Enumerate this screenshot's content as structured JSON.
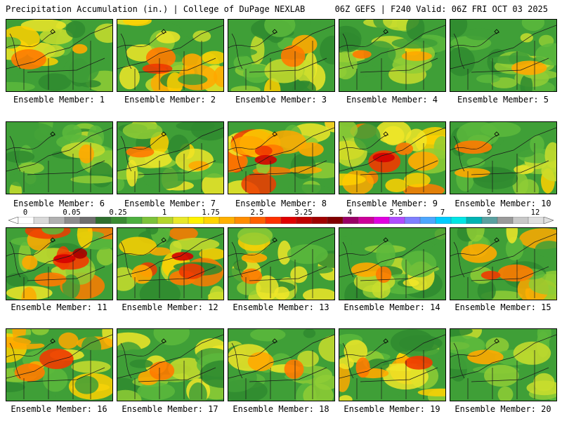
{
  "header": {
    "left_title": "Precipitation Accumulation (in.) | College of DuPage NEXLAB",
    "right_title": "06Z GEFS | F240 Valid: 06Z FRI OCT 03 2025"
  },
  "members": [
    {
      "label": "Ensemble Member: 1",
      "intensity": 2
    },
    {
      "label": "Ensemble Member: 2",
      "intensity": 3
    },
    {
      "label": "Ensemble Member: 3",
      "intensity": 2
    },
    {
      "label": "Ensemble Member: 4",
      "intensity": 2
    },
    {
      "label": "Ensemble Member: 5",
      "intensity": 1
    },
    {
      "label": "Ensemble Member: 6",
      "intensity": 1
    },
    {
      "label": "Ensemble Member: 7",
      "intensity": 2
    },
    {
      "label": "Ensemble Member: 8",
      "intensity": 4
    },
    {
      "label": "Ensemble Member: 9",
      "intensity": 4
    },
    {
      "label": "Ensemble Member: 10",
      "intensity": 2
    },
    {
      "label": "Ensemble Member: 11",
      "intensity": 5
    },
    {
      "label": "Ensemble Member: 12",
      "intensity": 4
    },
    {
      "label": "Ensemble Member: 13",
      "intensity": 2
    },
    {
      "label": "Ensemble Member: 14",
      "intensity": 2
    },
    {
      "label": "Ensemble Member: 15",
      "intensity": 3
    },
    {
      "label": "Ensemble Member: 16",
      "intensity": 3
    },
    {
      "label": "Ensemble Member: 17",
      "intensity": 2
    },
    {
      "label": "Ensemble Member: 18",
      "intensity": 2
    },
    {
      "label": "Ensemble Member: 19",
      "intensity": 3
    },
    {
      "label": "Ensemble Member: 20",
      "intensity": 1
    }
  ],
  "colorbar": {
    "labels": [
      "0",
      "0.05",
      "0.25",
      "1",
      "1.75",
      "2.5",
      "3.25",
      "4",
      "5.5",
      "7",
      "9",
      "12"
    ],
    "colors": [
      "#ffffff",
      "#d9d9d9",
      "#b0b0b0",
      "#8c8c8c",
      "#6e6e6e",
      "#2f6f2f",
      "#3a8a32",
      "#4caf3f",
      "#7cc23a",
      "#b5d62c",
      "#e8e82a",
      "#fff200",
      "#ffd400",
      "#ffb000",
      "#ff8c00",
      "#ff6000",
      "#ff3000",
      "#e00000",
      "#c00000",
      "#a00000",
      "#800000",
      "#990066",
      "#cc0099",
      "#e000e0",
      "#b04cff",
      "#7f7fff",
      "#4da6ff",
      "#00ccff",
      "#00e5e5",
      "#00b3b3",
      "#5aa0a0",
      "#9a9a9a",
      "#c8c8c8",
      "#e0e0e0"
    ],
    "accent_low": "#3f9f37",
    "accent_mid": "#e8e82a",
    "accent_high": "#e00000"
  }
}
